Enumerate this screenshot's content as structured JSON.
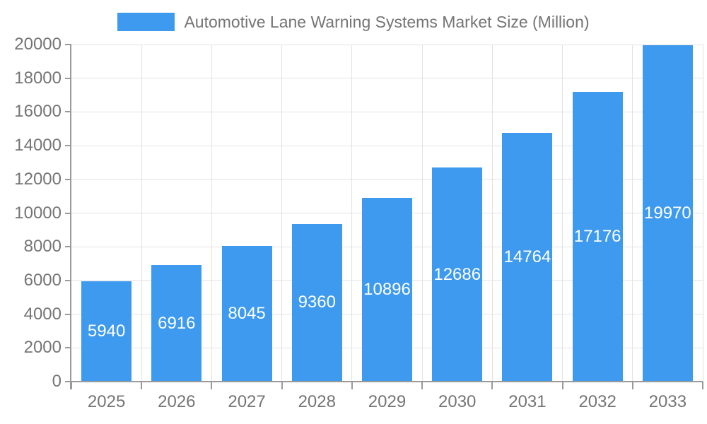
{
  "chart_data": {
    "type": "bar",
    "title": "Automotive Lane Warning Systems Market Size (Million)",
    "categories": [
      "2025",
      "2026",
      "2027",
      "2028",
      "2029",
      "2030",
      "2031",
      "2032",
      "2033"
    ],
    "values": [
      5940,
      6916,
      8045,
      9360,
      10896,
      12686,
      14764,
      17176,
      19970
    ],
    "xlabel": "",
    "ylabel": "",
    "ylim": [
      0,
      20000
    ],
    "ytick_interval": 2000,
    "ytick_labels": [
      "0",
      "2000",
      "4000",
      "6000",
      "8000",
      "10000",
      "12000",
      "14000",
      "16000",
      "18000",
      "20000"
    ],
    "grid": true,
    "legend_position": "top",
    "bar_labels_inside": true,
    "colors": {
      "bar": "#3E9AEE",
      "bar_label": "#FFFFFF",
      "axis_line": "#9A9A9A",
      "grid_line": "#E3E3E3",
      "tick_label": "#757575",
      "legend_text": "#757575",
      "background": "#FFFFFF"
    }
  }
}
